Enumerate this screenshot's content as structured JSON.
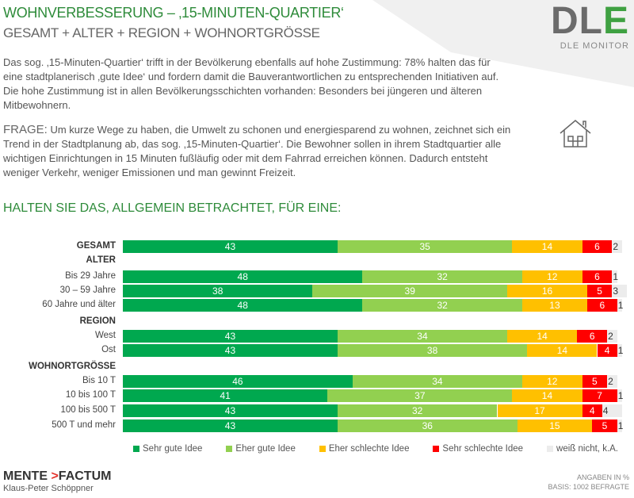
{
  "header": {
    "title": "WOHNVERBESSERUNG – ‚15-MINUTEN-QUARTIER‘",
    "subtitle": "GESAMT + ALTER + REGION + WOHNORTGRÖSSE"
  },
  "logo": {
    "text": "DLE",
    "caption": "DLE MONITOR"
  },
  "intro": "Das sog. ‚15-Minuten-Quartier‘ trifft in der Bevölkerung ebenfalls auf hohe Zustimmung: 78% halten das für eine stadtplanerisch ‚gute Idee‘ und fordern damit die Bauverantwortlichen zu entsprechenden Initiativen auf. Die hohe Zustimmung ist in allen Bevölkerungsschichten vorhanden: Besonders bei jüngeren und älteren Mitbewohnern.",
  "question": {
    "lead": "FRAGE:",
    "text": " Um kurze Wege zu haben, die Umwelt zu schonen und energiesparend zu wohnen, zeichnet sich ein Trend in der Stadtplanung ab, das sog. ‚15-Minuten-Quartier‘. Die Bewohner sollen in ihrem Stadtquartier alle wichtigen Einrichtungen in 15 Minuten fußläufig oder mit dem Fahrrad erreichen können. Dadurch entsteht weniger Verkehr, weniger Emissionen und man gewinnt Freizeit."
  },
  "icon": "house-icon",
  "chart_data": {
    "type": "bar",
    "orientation": "horizontal-stacked",
    "title": "HALTEN SIE DAS, ALLGEMEIN BETRACHTET, FÜR EINE:",
    "xlim": [
      0,
      100
    ],
    "legend_position": "bottom",
    "series": [
      {
        "name": "Sehr gute Idee",
        "color": "#00a84f"
      },
      {
        "name": "Eher gute Idee",
        "color": "#92d050"
      },
      {
        "name": "Eher schlechte Idee",
        "color": "#ffc000"
      },
      {
        "name": "Sehr schlechte Idee",
        "color": "#ff0000"
      },
      {
        "name": "weiß nicht, k.A.",
        "color": "#ececec"
      }
    ],
    "rows": [
      {
        "label": "GESAMT",
        "bold": true,
        "values": [
          43,
          35,
          14,
          6,
          2
        ]
      },
      {
        "label": "ALTER",
        "heading": true
      },
      {
        "label": "Bis 29 Jahre",
        "values": [
          48,
          32,
          12,
          6,
          1
        ]
      },
      {
        "label": "30 – 59 Jahre",
        "values": [
          38,
          39,
          16,
          5,
          3
        ]
      },
      {
        "label": "60 Jahre und älter",
        "values": [
          48,
          32,
          13,
          6,
          1
        ]
      },
      {
        "label": "REGION",
        "heading": true
      },
      {
        "label": "West",
        "values": [
          43,
          34,
          14,
          6,
          2
        ]
      },
      {
        "label": "Ost",
        "values": [
          43,
          38,
          14,
          4,
          1
        ]
      },
      {
        "label": "WOHNORTGRÖSSE",
        "heading": true
      },
      {
        "label": "Bis 10 T",
        "values": [
          46,
          34,
          12,
          5,
          2
        ]
      },
      {
        "label": "10 bis 100 T",
        "values": [
          41,
          37,
          14,
          7,
          1
        ]
      },
      {
        "label": "100 bis 500 T",
        "values": [
          43,
          32,
          17,
          4,
          4
        ]
      },
      {
        "label": "500 T und mehr",
        "values": [
          43,
          36,
          15,
          5,
          1
        ]
      }
    ]
  },
  "footer": {
    "brand_left": "MENTE",
    "brand_right": "FACTUM",
    "author": "Klaus-Peter Schöppner",
    "note1": "ANGABEN IN %",
    "note2": "BASIS: 1002 BEFRAGTE"
  }
}
